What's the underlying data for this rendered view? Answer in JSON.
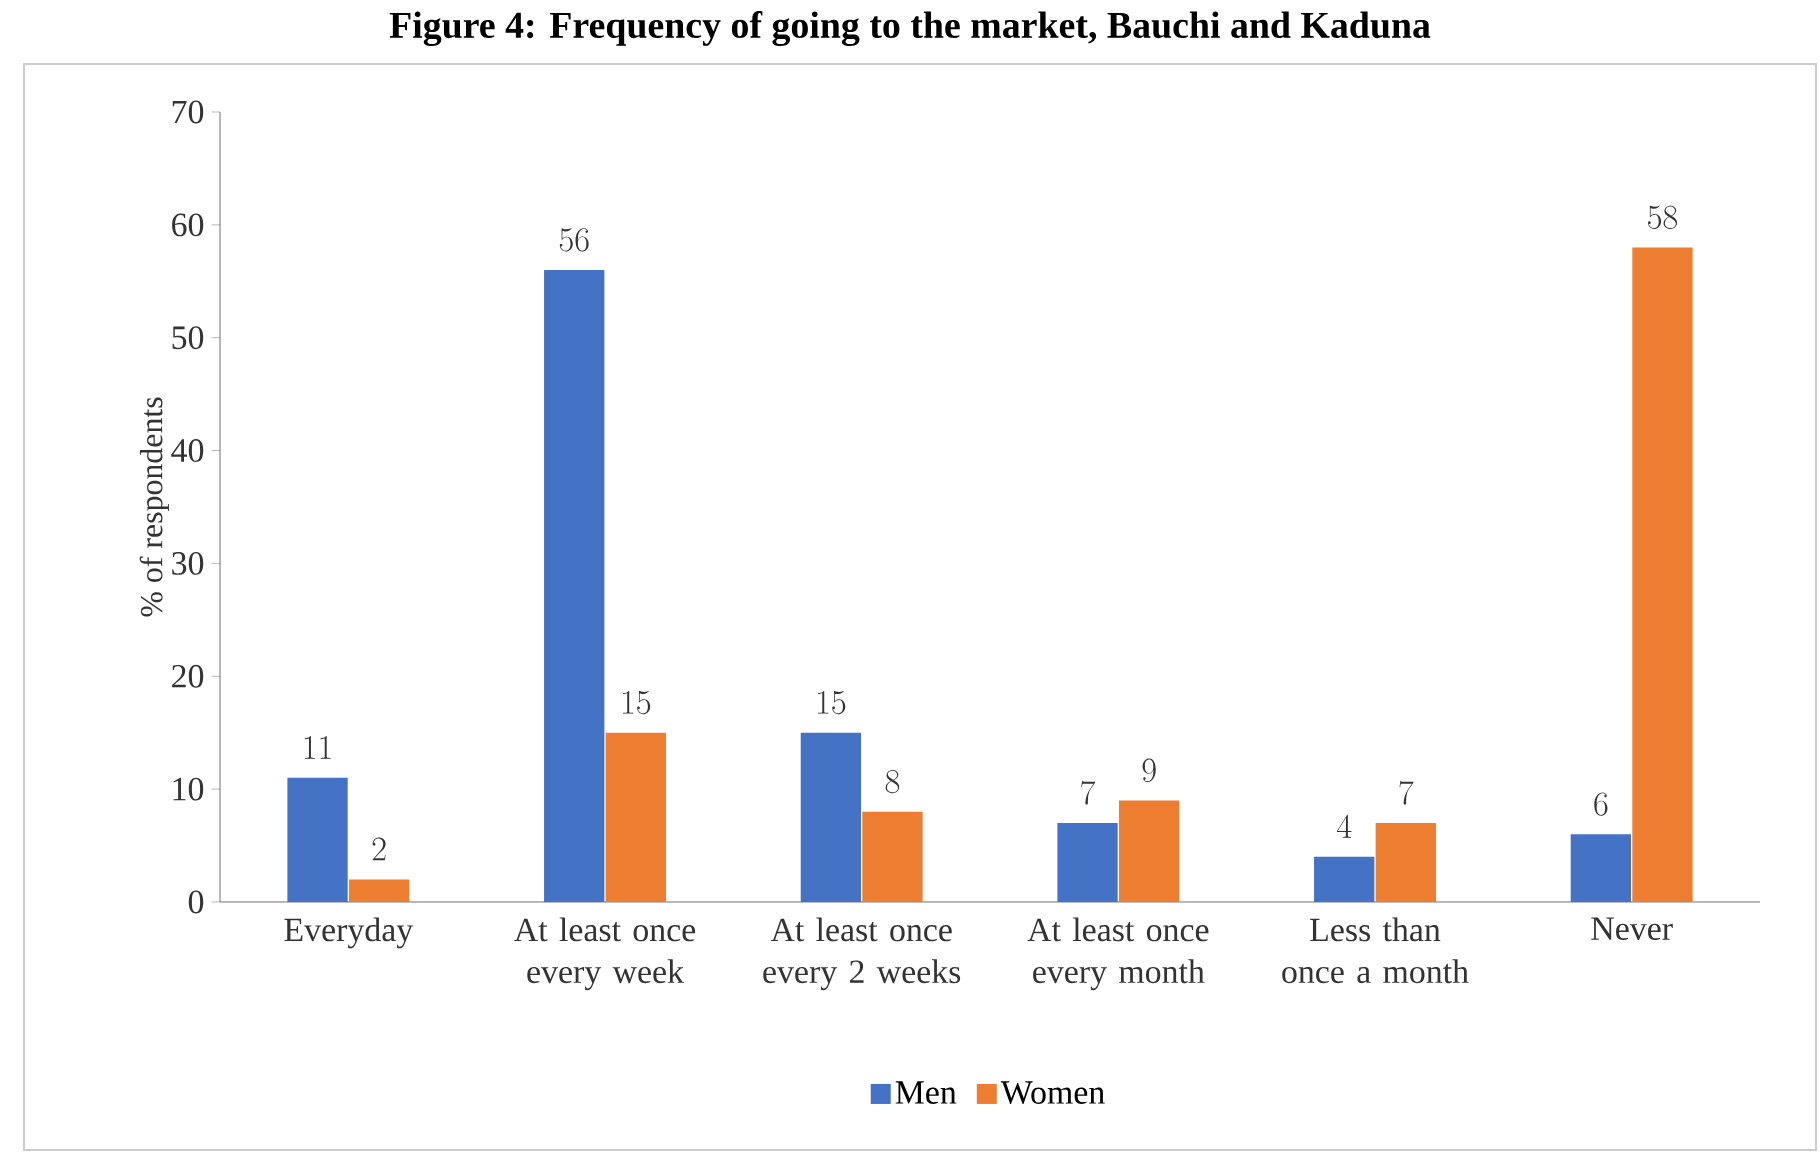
{
  "chart_data": {
    "type": "bar",
    "title": "Figure 4: Frequency of going to the market, Bauchi and Kaduna",
    "categories": [
      "Everyday",
      "At least once every week",
      "At least once every 2 weeks",
      "At least once every month",
      "Less than once a month",
      "Never"
    ],
    "series": [
      {
        "name": "Men",
        "color": "#4472c4",
        "values": [
          11,
          56,
          15,
          7,
          4,
          6
        ]
      },
      {
        "name": "Women",
        "color": "#ed7d31",
        "values": [
          2,
          15,
          8,
          9,
          7,
          58
        ]
      }
    ],
    "ylabel": "% of respondents",
    "ylim": [
      0,
      70
    ],
    "yticks": [
      0,
      10,
      20,
      30,
      40,
      50,
      60,
      70
    ],
    "data_labels": true,
    "legend": "bottom",
    "grid": false
  }
}
